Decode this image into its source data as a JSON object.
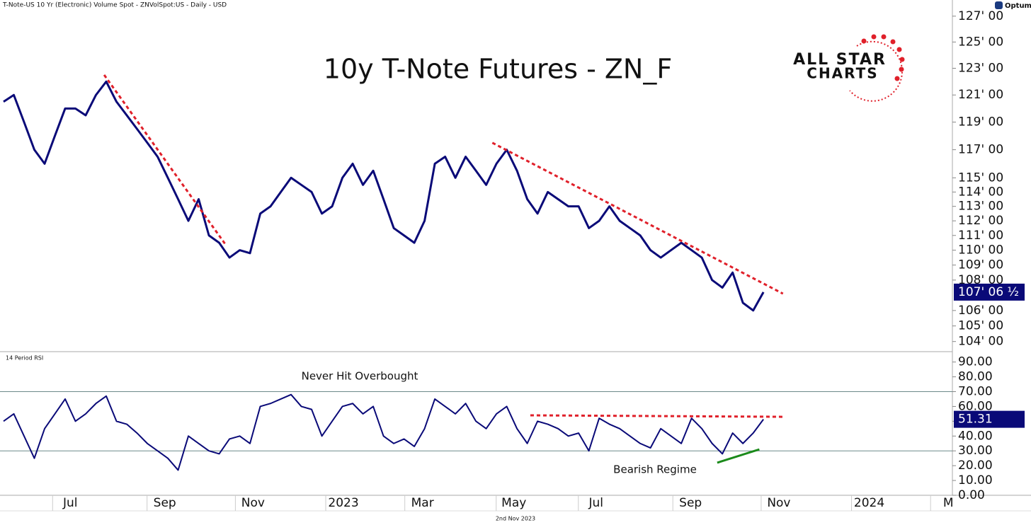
{
  "header": "T-Note-US 10 Yr (Electronic) Volume Spot - ZNVolSpot:US - Daily - USD",
  "brand": "Optuma",
  "logo": [
    "ALL STAR",
    "CHARTS"
  ],
  "footer": "2nd Nov 2023",
  "chart_data": [
    {
      "type": "line",
      "title": "10y T-Note Futures - ZN_F",
      "log": true,
      "series": [
        {
          "name": "ZN_F",
          "color": "#0a0a78",
          "values": [
            120.5,
            121,
            119,
            117,
            116,
            118,
            120,
            120,
            119.5,
            121,
            122,
            120.5,
            119.5,
            118.5,
            117.5,
            116.5,
            115,
            113.5,
            112,
            113.5,
            111,
            110.5,
            109.5,
            110,
            109.8,
            112.5,
            113,
            114,
            115,
            114.5,
            114,
            112.5,
            113,
            115,
            116,
            114.5,
            115.5,
            113.5,
            111.5,
            111,
            110.5,
            112,
            116,
            116.5,
            115,
            116.5,
            115.5,
            114.5,
            116,
            117,
            115.5,
            113.5,
            112.5,
            114,
            113.5,
            113,
            113,
            111.5,
            112,
            113,
            112,
            111.5,
            111,
            110,
            109.5,
            110,
            110.5,
            110,
            109.5,
            108,
            107.5,
            108.5,
            106.5,
            106,
            107.203125
          ]
        }
      ],
      "current": {
        "value": 107.203125,
        "label": "107' 06 ½"
      },
      "trendlines": [
        {
          "color": "#e0202a",
          "x": [
            9.8,
            21.6
          ],
          "y": [
            122.5,
            110.4
          ]
        },
        {
          "color": "#e0202a",
          "x": [
            47.6,
            75.9
          ],
          "y": [
            117.5,
            107.1
          ]
        }
      ],
      "xlim": [
        0,
        92.4
      ],
      "ylim": [
        103.4,
        127.6
      ],
      "yticks": [
        {
          "value": 127,
          "label": "127' 00"
        },
        {
          "value": 125,
          "label": "125' 00"
        },
        {
          "value": 123,
          "label": "123' 00"
        },
        {
          "value": 121,
          "label": "121' 00"
        },
        {
          "value": 119,
          "label": "119' 00"
        },
        {
          "value": 117,
          "label": "117' 00"
        },
        {
          "value": 115,
          "label": "115' 00"
        },
        {
          "value": 114,
          "label": "114' 00"
        },
        {
          "value": 113,
          "label": "113' 00"
        },
        {
          "value": 112,
          "label": "112' 00"
        },
        {
          "value": 111,
          "label": "111' 00"
        },
        {
          "value": 110,
          "label": "110' 00"
        },
        {
          "value": 109,
          "label": "109' 00"
        },
        {
          "value": 108,
          "label": "108' 00"
        },
        {
          "value": 106,
          "label": "106' 00"
        },
        {
          "value": 105,
          "label": "105' 00"
        },
        {
          "value": 104,
          "label": "104' 00"
        }
      ]
    },
    {
      "type": "line",
      "title": "14 Period RSI",
      "series": [
        {
          "name": "RSI",
          "color": "#0a0a78",
          "values": [
            50,
            55,
            40,
            25,
            45,
            55,
            65,
            50,
            55,
            62,
            67,
            50,
            48,
            42,
            35,
            30,
            25,
            17,
            40,
            35,
            30,
            28,
            38,
            40,
            35,
            60,
            62,
            65,
            68,
            60,
            58,
            40,
            50,
            60,
            62,
            55,
            60,
            40,
            35,
            38,
            33,
            45,
            65,
            60,
            55,
            62,
            50,
            45,
            55,
            60,
            45,
            35,
            50,
            48,
            45,
            40,
            42,
            30,
            52,
            48,
            45,
            40,
            35,
            32,
            45,
            40,
            35,
            52,
            45,
            35,
            28,
            42,
            35,
            42,
            51.31
          ]
        }
      ],
      "current": 51.31,
      "levels": [
        70,
        30
      ],
      "annotations": [
        "Never Hit Overbought",
        "Bearish Regime"
      ],
      "trendlines": [
        {
          "color": "#e0202a",
          "x": [
            51.3,
            76
          ],
          "y": [
            54,
            53
          ]
        },
        {
          "color": "#1a8a1a",
          "x": [
            69.5,
            73.6
          ],
          "y": [
            22,
            31
          ]
        }
      ],
      "xlim": [
        0,
        92.4
      ],
      "ylim": [
        0,
        97
      ],
      "yticks": [
        {
          "value": 0,
          "label": "0.00"
        },
        {
          "value": 10,
          "label": "10.00"
        },
        {
          "value": 20,
          "label": "20.00"
        },
        {
          "value": 30,
          "label": "30.00"
        },
        {
          "value": 40,
          "label": "40.00"
        },
        {
          "value": 50,
          "label": "50.00"
        },
        {
          "value": 60,
          "label": "60.00"
        },
        {
          "value": 70,
          "label": "70.00"
        },
        {
          "value": 80,
          "label": "80.00"
        },
        {
          "value": 90,
          "label": "90.00"
        }
      ],
      "xticks": [
        {
          "value": 6.5,
          "label": "Jul"
        },
        {
          "value": 15.7,
          "label": "Sep"
        },
        {
          "value": 24.3,
          "label": "Nov"
        },
        {
          "value": 33.1,
          "label": "2023"
        },
        {
          "value": 40.8,
          "label": "Mar"
        },
        {
          "value": 49.7,
          "label": "May"
        },
        {
          "value": 57.7,
          "label": "Jul"
        },
        {
          "value": 66.9,
          "label": "Sep"
        },
        {
          "value": 75.5,
          "label": "Nov"
        },
        {
          "value": 84.3,
          "label": "2024"
        },
        {
          "value": 92,
          "label": "M"
        }
      ]
    }
  ]
}
